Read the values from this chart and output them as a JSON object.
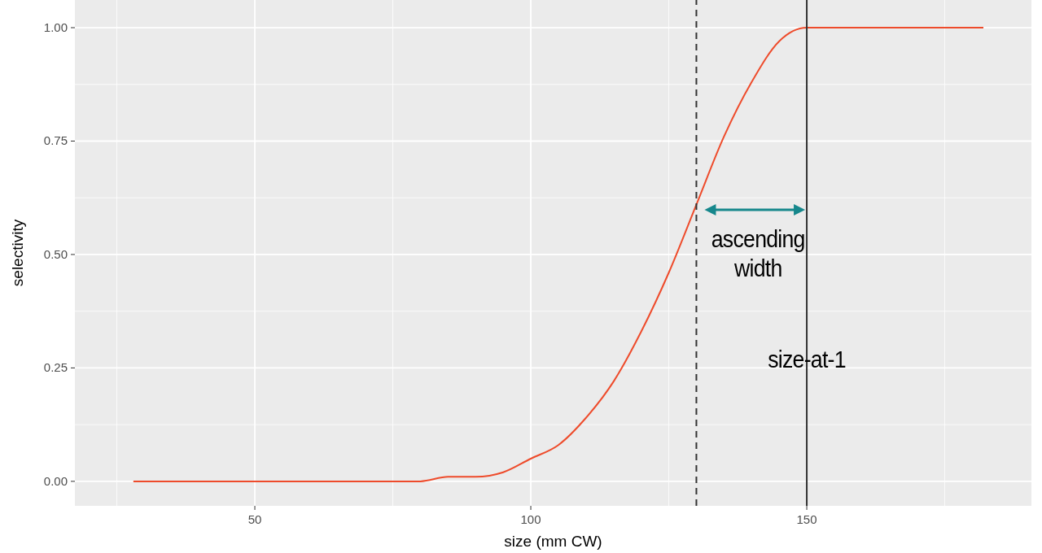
{
  "chart_data": {
    "type": "line",
    "xlabel": "size (mm CW)",
    "ylabel": "selectivity",
    "xlim": [
      17.4,
      190.7
    ],
    "ylim": [
      -0.054,
      1.061
    ],
    "xticks": [
      50,
      100,
      150
    ],
    "yticks": [
      {
        "value": 0,
        "label": "0.00"
      },
      {
        "value": 0.25,
        "label": "0.25"
      },
      {
        "value": 0.5,
        "label": "0.50"
      },
      {
        "value": 0.75,
        "label": "0.75"
      },
      {
        "value": 1,
        "label": "1.00"
      }
    ],
    "grid": true,
    "marker": "none",
    "line_style": "solid",
    "series": [
      {
        "color": "#ee4b2b",
        "x": [
          28,
          40,
          50,
          60,
          70,
          80,
          85,
          90,
          95,
          100,
          105,
          110,
          115,
          120,
          125,
          130,
          135,
          140,
          145,
          150,
          160,
          170,
          182
        ],
        "values": [
          0,
          0,
          0,
          0,
          0,
          0,
          0.01,
          0.01,
          0.02,
          0.05,
          0.08,
          0.14,
          0.22,
          0.33,
          0.46,
          0.61,
          0.76,
          0.88,
          0.97,
          1,
          1,
          1,
          1
        ]
      }
    ],
    "ref_lines": [
      {
        "axis": "x",
        "value": 130,
        "line_style": "dashed",
        "color": "#333333"
      },
      {
        "axis": "x",
        "value": 150,
        "line_style": "solid",
        "color": "#333333"
      }
    ],
    "annotations": [
      "ascending\nwidth",
      {
        "text": "size-at-1",
        "x": 150,
        "y": 0.25
      }
    ]
  }
}
